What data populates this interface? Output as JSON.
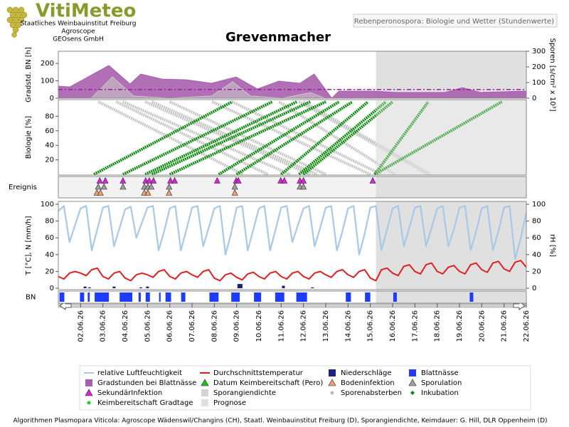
{
  "header": {
    "logo": "VitiMeteo",
    "lines": [
      "Staatliches Weinbauinstitut Freiburg",
      "Agroscope",
      "GEOsens GmbH"
    ],
    "subtitle": "Rebenperonospora: Biologie und Wetter (Stundenwerte)"
  },
  "title": "Grevenmacher",
  "xaxis": {
    "xlim": [
      1,
      22
    ],
    "xticks": [
      {
        "value": 2,
        "label": "02.06.26"
      },
      {
        "value": 3,
        "label": "03.06.26"
      },
      {
        "value": 4,
        "label": "04.06.26"
      },
      {
        "value": 5,
        "label": "05.06.26"
      },
      {
        "value": 6,
        "label": "06.06.26"
      },
      {
        "value": 7,
        "label": "07.06.26"
      },
      {
        "value": 8,
        "label": "08.06.26"
      },
      {
        "value": 9,
        "label": "09.06.26"
      },
      {
        "value": 10,
        "label": "10.06.26"
      },
      {
        "value": 11,
        "label": "11.06.26"
      },
      {
        "value": 12,
        "label": "12.06.26"
      },
      {
        "value": 13,
        "label": "13.06.26"
      },
      {
        "value": 14,
        "label": "14.06.26"
      },
      {
        "value": 15,
        "label": "15.06.26"
      },
      {
        "value": 16,
        "label": "16.06.26"
      },
      {
        "value": 17,
        "label": "17.06.26"
      },
      {
        "value": 18,
        "label": "18.06.26"
      },
      {
        "value": 19,
        "label": "19.06.26"
      },
      {
        "value": 20,
        "label": "20.06.26"
      },
      {
        "value": 21,
        "label": "21.06.26"
      },
      {
        "value": 22,
        "label": "22.06.26"
      }
    ]
  },
  "prognosis_start": 15.25,
  "prognosis_color": "#e0e0e0",
  "chart_data": [
    {
      "type": "area",
      "ylabel": "Gradstd. BN [h]",
      "ylim": [
        0,
        270
      ],
      "yticks": [
        0,
        100,
        200
      ],
      "y2label": "Sporen [s/cm² x 10³]",
      "y2lim": [
        0,
        300
      ],
      "y2ticks": [
        0,
        100,
        200,
        300
      ],
      "threshold": 50,
      "threshold_color": "#9b1fa0",
      "series": [
        {
          "color": "#a95fad",
          "x": [
            1,
            1.52,
            3.27,
            4.22,
            4.7,
            5.65,
            6.76,
            7.87,
            8.98,
            9.94,
            10.89,
            11.84,
            12.48,
            13.27,
            13.59,
            15.17,
            16.13,
            18.35,
            19.14,
            19.94,
            22
          ],
          "values": [
            69,
            65,
            188,
            82,
            139,
            110,
            106,
            86,
            122,
            53,
            98,
            86,
            139,
            0,
            41,
            41,
            33,
            33,
            61,
            33,
            41
          ]
        },
        {
          "color": "#c8c8c8",
          "axis": "y2",
          "x": [
            1,
            2.48,
            3.43,
            4.38,
            5.97,
            7.87,
            8.83,
            9.62,
            11.05,
            12.32,
            12.95,
            22
          ],
          "values": [
            0,
            0,
            136,
            14,
            0,
            14,
            105,
            14,
            0,
            36,
            0,
            0
          ]
        }
      ]
    },
    {
      "type": "segments",
      "ylabel": "Biologie [%]",
      "ylim": [
        0,
        100
      ],
      "yticks": [
        20,
        40,
        60,
        80
      ],
      "series": [
        {
          "color": "#c4c4c4",
          "lines": [
            {
              "x": [
                2.8,
                9.3
              ],
              "values": [
                100,
                0
              ]
            },
            {
              "x": [
                3.6,
                10.4
              ],
              "values": [
                100,
                0
              ]
            },
            {
              "x": [
                3.9,
                11.4
              ],
              "values": [
                100,
                0
              ]
            },
            {
              "x": [
                4.9,
                12.3
              ],
              "values": [
                100,
                0
              ]
            },
            {
              "x": [
                5.2,
                12.6
              ],
              "values": [
                100,
                0
              ]
            },
            {
              "x": [
                6.0,
                13.0
              ],
              "values": [
                100,
                0
              ]
            },
            {
              "x": [
                7.9,
                15.0
              ],
              "values": [
                100,
                0
              ]
            },
            {
              "x": [
                8.8,
                15.5
              ],
              "values": [
                100,
                0
              ]
            },
            {
              "x": [
                10.9,
                16.1
              ],
              "values": [
                100,
                0
              ]
            },
            {
              "x": [
                11.8,
                17.6
              ],
              "values": [
                100,
                0
              ]
            },
            {
              "x": [
                12.0,
                17.7
              ],
              "values": [
                100,
                0
              ]
            }
          ]
        },
        {
          "color": "#0a8a0a",
          "lines": [
            {
              "x": [
                2.6,
                8.8
              ],
              "values": [
                0,
                100
              ]
            },
            {
              "x": [
                3.9,
                10.6
              ],
              "values": [
                0,
                100
              ]
            },
            {
              "x": [
                4.9,
                11.7
              ],
              "values": [
                0,
                100
              ]
            },
            {
              "x": [
                5.2,
                12.3
              ],
              "values": [
                0,
                100
              ]
            },
            {
              "x": [
                6.0,
                13.0
              ],
              "values": [
                0,
                100
              ]
            },
            {
              "x": [
                8.2,
                13.6
              ],
              "values": [
                0,
                100
              ]
            },
            {
              "x": [
                9.0,
                14.2
              ],
              "values": [
                0,
                100
              ]
            },
            {
              "x": [
                11.0,
                14.9
              ],
              "values": [
                0,
                100
              ]
            },
            {
              "x": [
                11.8,
                15.7
              ],
              "values": [
                0,
                100
              ]
            },
            {
              "x": [
                12.0,
                16.0
              ],
              "values": [
                0,
                100
              ]
            },
            {
              "x": [
                15.2,
                17.6
              ],
              "values": [
                0,
                100
              ]
            },
            {
              "x": [
                15.2,
                20.9
              ],
              "values": [
                0,
                100
              ]
            }
          ]
        }
      ]
    },
    {
      "type": "events",
      "label": "Ereignis",
      "series": [
        {
          "color": "#e020e0",
          "x": [
            2.86,
            3.11,
            3.9,
            4.92,
            5.08,
            5.27,
            6.03,
            6.22,
            8.13,
            8.98,
            9.08,
            10.98,
            11.14,
            11.84,
            12.0,
            15.11
          ]
        },
        {
          "color": "#a0a0a0",
          "x": [
            2.79,
            3.05,
            3.9,
            4.86,
            5.02,
            5.17,
            5.97,
            8.92,
            11.84,
            12.0
          ]
        },
        {
          "color": "#f0a070",
          "x": [
            2.73,
            2.89,
            4.86,
            5.02,
            5.97,
            8.92
          ]
        }
      ]
    },
    {
      "type": "line",
      "ylabel": "T [°C], N [mm/h]",
      "ylim": [
        0,
        100
      ],
      "yticks": [
        0,
        20,
        40,
        60,
        80,
        100
      ],
      "y2label": "rH [%]",
      "y2lim": [
        0,
        100
      ],
      "y2ticks": [
        0,
        20,
        40,
        60,
        80,
        100
      ],
      "x": [
        1,
        1.25,
        1.5,
        1.75,
        2,
        2.25,
        2.5,
        2.75,
        3,
        3.25,
        3.5,
        3.75,
        4,
        4.25,
        4.5,
        4.75,
        5,
        5.25,
        5.5,
        5.75,
        6,
        6.25,
        6.5,
        6.75,
        7,
        7.25,
        7.5,
        7.75,
        8,
        8.25,
        8.5,
        8.75,
        9,
        9.25,
        9.5,
        9.75,
        10,
        10.25,
        10.5,
        10.75,
        11,
        11.25,
        11.5,
        11.75,
        12,
        12.25,
        12.5,
        12.75,
        13,
        13.25,
        13.5,
        13.75,
        14,
        14.25,
        14.5,
        14.75,
        15,
        15.25,
        15.5,
        15.75,
        16,
        16.25,
        16.5,
        16.75,
        17,
        17.25,
        17.5,
        17.75,
        18,
        18.25,
        18.5,
        18.75,
        19,
        19.25,
        19.5,
        19.75,
        20,
        20.25,
        20.5,
        20.75,
        21,
        21.25,
        21.5,
        21.75,
        22
      ],
      "series": [
        {
          "color": "#a8c8e8",
          "axis": "y2",
          "values": [
            92,
            98,
            55,
            75,
            95,
            98,
            45,
            70,
            96,
            98,
            50,
            72,
            94,
            97,
            60,
            78,
            96,
            98,
            45,
            68,
            95,
            98,
            45,
            70,
            96,
            98,
            50,
            72,
            95,
            98,
            40,
            65,
            96,
            98,
            45,
            70,
            95,
            98,
            45,
            70,
            96,
            98,
            55,
            75,
            95,
            98,
            50,
            72,
            96,
            98,
            45,
            68,
            95,
            98,
            40,
            65,
            96,
            98,
            45,
            70,
            95,
            98,
            50,
            72,
            96,
            98,
            50,
            72,
            95,
            98,
            50,
            70,
            96,
            98,
            45,
            68,
            95,
            98,
            45,
            68,
            96,
            98,
            35,
            60,
            90
          ]
        },
        {
          "color": "#e02020",
          "values": [
            14,
            11,
            18,
            20,
            18,
            15,
            22,
            24,
            14,
            11,
            18,
            20,
            12,
            9,
            16,
            18,
            16,
            13,
            20,
            22,
            14,
            11,
            18,
            20,
            16,
            13,
            20,
            22,
            12,
            9,
            16,
            18,
            13,
            10,
            17,
            19,
            14,
            11,
            18,
            20,
            14,
            11,
            18,
            20,
            14,
            11,
            18,
            20,
            16,
            13,
            20,
            22,
            16,
            13,
            20,
            22,
            12,
            9,
            22,
            24,
            18,
            15,
            26,
            28,
            20,
            17,
            28,
            30,
            20,
            17,
            25,
            27,
            20,
            17,
            28,
            30,
            22,
            19,
            30,
            32,
            23,
            20,
            31,
            33,
            25
          ]
        }
      ],
      "bars": {
        "color": "#1a237e",
        "x": [
          2.2,
          2.4,
          3.5,
          4.7,
          5.0,
          9.1,
          9.2,
          11.1,
          12.4
        ],
        "values": [
          2,
          1,
          2,
          1,
          2,
          5,
          5,
          3,
          1
        ]
      }
    },
    {
      "type": "intervals",
      "label": "BN",
      "color": "#1e3cff",
      "intervals": [
        [
          1.05,
          1.27
        ],
        [
          1.97,
          2.16
        ],
        [
          2.32,
          2.41
        ],
        [
          2.63,
          3.27
        ],
        [
          3.75,
          4.32
        ],
        [
          4.6,
          4.7
        ],
        [
          4.92,
          5.11
        ],
        [
          5.52,
          5.59
        ],
        [
          5.81,
          6.06
        ],
        [
          6.51,
          6.7
        ],
        [
          7.78,
          8.19
        ],
        [
          8.76,
          9.14
        ],
        [
          9.78,
          10.1
        ],
        [
          10.73,
          11.14
        ],
        [
          11.68,
          12.16
        ],
        [
          13.9,
          14.13
        ],
        [
          14.76,
          15.0
        ],
        [
          16.03,
          16.19
        ],
        [
          19.46,
          19.62
        ]
      ]
    }
  ],
  "legend": [
    {
      "label": "relative Luftfeuchtigkeit",
      "color": "#a8c8e8",
      "symbol": "line"
    },
    {
      "label": "Durchschnittstemperatur",
      "color": "#e02020",
      "symbol": "line"
    },
    {
      "label": "Niederschläge",
      "color": "#1a237e",
      "symbol": "square"
    },
    {
      "label": "Blattnässe",
      "color": "#1e3cff",
      "symbol": "square"
    },
    {
      "label": "Gradstunden bei Blattnässe",
      "color": "#a95fad",
      "symbol": "square"
    },
    {
      "label": "Datum Keimbereitschaft (Pero)",
      "color": "#20c020",
      "symbol": "triangle"
    },
    {
      "label": "Bodeninfektion",
      "color": "#f0a070",
      "symbol": "triangle"
    },
    {
      "label": "Sporulation",
      "color": "#a0a0a0",
      "symbol": "triangle"
    },
    {
      "label": "SekundärInfektion",
      "color": "#e020e0",
      "symbol": "triangle"
    },
    {
      "label": "Sporangiendichte",
      "color": "#d4d4d4",
      "symbol": "square"
    },
    {
      "label": "Sporenabsterben",
      "color": "#b8b8b8",
      "symbol": "diamond"
    },
    {
      "label": "Inkubation",
      "color": "#0a8a0a",
      "symbol": "diamond"
    },
    {
      "label": "Keimbereitschaft Gradtage",
      "color": "#20d020",
      "symbol": "dot"
    },
    {
      "label": "Prognose",
      "color": "#e0e0e0",
      "symbol": "square"
    }
  ],
  "footer": "Algorithmen Plasmopara Viticola: Agroscope Wädenswil/Changins (CH), Staatl. Weinbauinstitut Freiburg (D), Sporangiendichte, Keimdauer: G. Hill, DLR Oppenheim (D)"
}
